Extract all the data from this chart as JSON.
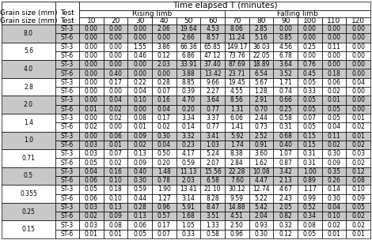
{
  "title": "Time elapsed T (minutes)",
  "rising_limb_label": "Rising limb",
  "falling_limb_label": "Falling limb",
  "time_labels": [
    "10",
    "20",
    "30",
    "40",
    "50",
    "60",
    "70",
    "80",
    "90",
    "100",
    "110",
    "120"
  ],
  "rows": [
    [
      "8.0",
      "ST-3",
      "0.00",
      "0.00",
      "0.00",
      "2.06",
      "19.64",
      "4.53",
      "8.06",
      "2.85",
      "0.00",
      "0.00",
      "0.00",
      "0.00"
    ],
    [
      "8.0",
      "ST-6",
      "0.00",
      "0.00",
      "0.00",
      "0.00",
      "2.66",
      "8.57",
      "11.24",
      "5.16",
      "0.85",
      "0.00",
      "0.00",
      "0.00"
    ],
    [
      "5.6",
      "ST-3",
      "0.00",
      "0.00",
      "1.55",
      "3.86",
      "66.36",
      "65.85",
      "149.17",
      "36.03",
      "4.56",
      "0.25",
      "0.11",
      "0.00"
    ],
    [
      "5.6",
      "ST-6",
      "0.00",
      "0.00",
      "0.46",
      "0.12",
      "6.86",
      "47.12",
      "73.76",
      "22.05",
      "6.78",
      "0.00",
      "0.00",
      "0.00"
    ],
    [
      "4.0",
      "ST-3",
      "0.00",
      "0.00",
      "0.00",
      "2.03",
      "33.91",
      "37.40",
      "87.69",
      "18.89",
      "3.64",
      "0.76",
      "0.00",
      "0.00"
    ],
    [
      "4.0",
      "ST-6",
      "0.00",
      "0.40",
      "0.00",
      "0.00",
      "3.88",
      "13.42",
      "23.71",
      "6.54",
      "3.52",
      "0.45",
      "0.18",
      "0.00"
    ],
    [
      "2.8",
      "ST-3",
      "0.00",
      "0.17",
      "0.22",
      "0.28",
      "8.85",
      "9.66",
      "19.45",
      "5.67",
      "1.71",
      "0.05",
      "0.06",
      "0.04"
    ],
    [
      "2.8",
      "ST-6",
      "0.00",
      "0.00",
      "0.04",
      "0.07",
      "0.39",
      "2.27",
      "4.55",
      "1.28",
      "0.74",
      "0.33",
      "0.02",
      "0.00"
    ],
    [
      "2.0",
      "ST-3",
      "0.00",
      "0.04",
      "0.10",
      "0.16",
      "4.70",
      "3.64",
      "8.56",
      "2.91",
      "0.66",
      "0.05",
      "0.01",
      "0.00"
    ],
    [
      "2.0",
      "ST-6",
      "0.01",
      "0.02",
      "0.00",
      "0.04",
      "0.20",
      "0.77",
      "1.31",
      "0.70",
      "0.25",
      "0.05",
      "0.05",
      "0.00"
    ],
    [
      "1.4",
      "ST-3",
      "0.00",
      "0.02",
      "0.08",
      "0.17",
      "3.34",
      "3.37",
      "6.06",
      "2.44",
      "0.58",
      "0.07",
      "0.05",
      "0.01"
    ],
    [
      "1.4",
      "ST-6",
      "0.02",
      "0.00",
      "0.01",
      "0.02",
      "0.14",
      "0.77",
      "1.41",
      "0.73",
      "0.31",
      "0.05",
      "0.04",
      "0.02"
    ],
    [
      "1.0",
      "ST-3",
      "0.00",
      "0.06",
      "0.09",
      "0.30",
      "3.32",
      "3.41",
      "5.92",
      "2.52",
      "0.68",
      "0.15",
      "0.11",
      "0.01"
    ],
    [
      "1.0",
      "ST-6",
      "0.03",
      "0.01",
      "0.02",
      "0.04",
      "0.23",
      "1.03",
      "1.74",
      "0.91",
      "0.40",
      "0.15",
      "0.02",
      "0.02"
    ],
    [
      "0.71",
      "ST-3",
      "0.03",
      "0.07",
      "0.13",
      "0.50",
      "4.17",
      "5.24",
      "8.38",
      "3.60",
      "1.07",
      "0.31",
      "0.30",
      "0.03"
    ],
    [
      "0.71",
      "ST-6",
      "0.05",
      "0.02",
      "0.09",
      "0.20",
      "0.59",
      "2.07",
      "2.84",
      "1.62",
      "0.87",
      "0.31",
      "0.09",
      "0.02"
    ],
    [
      "0.5",
      "ST-3",
      "0.04",
      "0.16",
      "0.40",
      "1.48",
      "11.13",
      "15.56",
      "22.28",
      "10.08",
      "3.42",
      "1.00",
      "0.35",
      "0.12"
    ],
    [
      "0.5",
      "ST-6",
      "0.06",
      "0.10",
      "0.30",
      "0.78",
      "2.03",
      "6.58",
      "7.60",
      "4.47",
      "2.13",
      "0.89",
      "0.26",
      "0.08"
    ],
    [
      "0.355",
      "ST-3",
      "0.05",
      "0.18",
      "0.59",
      "1.90",
      "13.41",
      "21.10",
      "30.12",
      "12.74",
      "4.67",
      "1.17",
      "0.14",
      "0.10"
    ],
    [
      "0.355",
      "ST-6",
      "0.06",
      "0.10",
      "0.44",
      "1.27",
      "3.14",
      "8.28",
      "9.59",
      "5.22",
      "2.43",
      "0.99",
      "0.30",
      "0.09"
    ],
    [
      "0.25",
      "ST-3",
      "0.03",
      "0.13",
      "0.28",
      "0.96",
      "5.91",
      "8.47",
      "14.88",
      "5.42",
      "2.05",
      "0.52",
      "0.04",
      "0.05"
    ],
    [
      "0.25",
      "ST-6",
      "0.02",
      "0.09",
      "0.13",
      "0.57",
      "1.68",
      "3.51",
      "4.51",
      "2.04",
      "0.82",
      "0.34",
      "0.10",
      "0.02"
    ],
    [
      "0.15",
      "ST-3",
      "0.03",
      "0.08",
      "0.06",
      "0.17",
      "1.05",
      "1.33",
      "2.50",
      "0.93",
      "0.32",
      "0.08",
      "0.02",
      "0.02"
    ],
    [
      "0.15",
      "ST-6",
      "0.01",
      "0.01",
      "0.05",
      "0.07",
      "0.33",
      "0.58",
      "0.96",
      "0.30",
      "0.12",
      "0.05",
      "0.01",
      "0.01"
    ]
  ],
  "shaded_grain_sizes": [
    "8.0",
    "4.0",
    "2.0",
    "1.0",
    "0.5",
    "0.25"
  ],
  "bg_shaded": "#c8c8c8",
  "bg_white": "#ffffff",
  "font_size": 5.5,
  "header_font_size": 6.5,
  "title_font_size": 7.5,
  "lw": 0.5
}
